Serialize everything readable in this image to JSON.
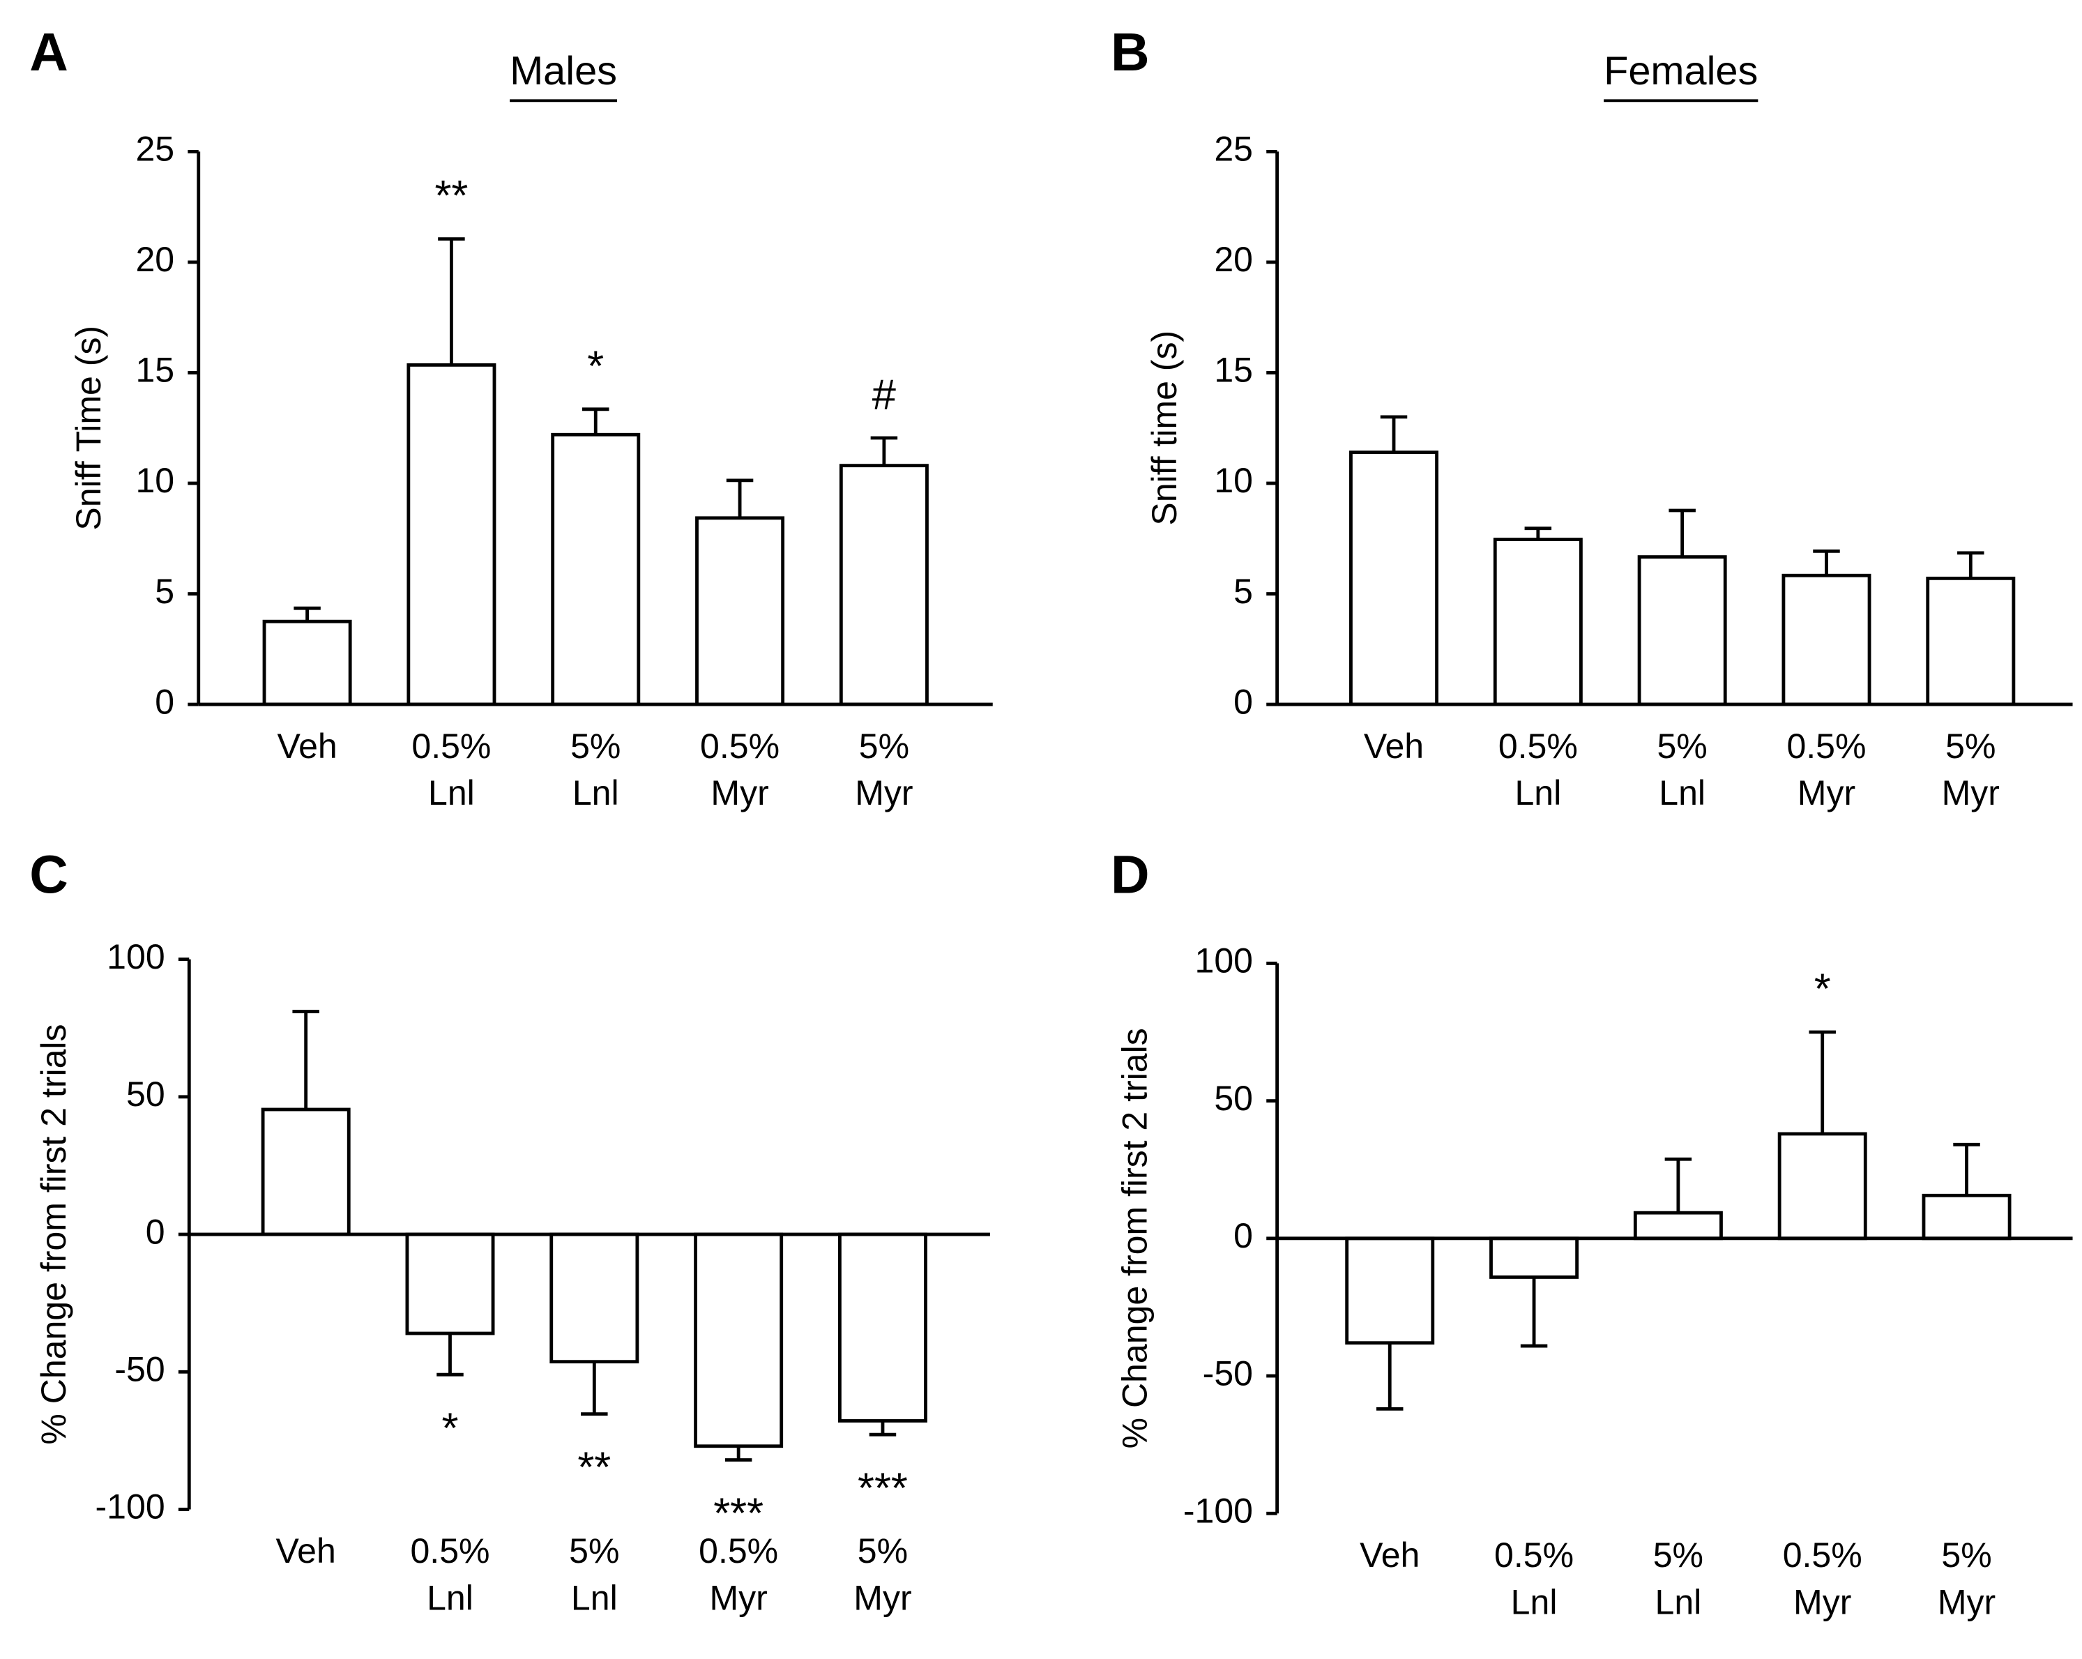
{
  "chart_data": [
    {
      "type": "bar",
      "panel": "A",
      "title": "Males",
      "ylabel": "Sniff Time (s)",
      "categories": [
        [
          "Veh"
        ],
        [
          "0.5%",
          "Lnl"
        ],
        [
          "5%",
          "Lnl"
        ],
        [
          "0.5%",
          "Myr"
        ],
        [
          "5%",
          "Myr"
        ]
      ],
      "values": [
        3.75,
        15.35,
        12.2,
        8.43,
        10.8
      ],
      "errors": [
        0.6,
        5.7,
        1.15,
        1.7,
        1.25
      ],
      "annotations": [
        null,
        "**",
        "*",
        null,
        "#"
      ],
      "color": "#ffffff",
      "ylim": [
        0,
        25
      ],
      "yticks": [
        0,
        5,
        10,
        15,
        20,
        25
      ]
    },
    {
      "type": "bar",
      "panel": "B",
      "title": "Females",
      "ylabel": "Sniff time (s)",
      "categories": [
        [
          "Veh"
        ],
        [
          "0.5%",
          "Lnl"
        ],
        [
          "5%",
          "Lnl"
        ],
        [
          "0.5%",
          "Myr"
        ],
        [
          "5%",
          "Myr"
        ]
      ],
      "values": [
        11.4,
        7.46,
        6.67,
        5.83,
        5.7
      ],
      "errors": [
        1.6,
        0.5,
        2.1,
        1.1,
        1.15
      ],
      "annotations": [
        null,
        null,
        null,
        null,
        null
      ],
      "color": "#ffffff",
      "ylim": [
        0,
        25
      ],
      "yticks": [
        0,
        5,
        10,
        15,
        20,
        25
      ]
    },
    {
      "type": "bar",
      "panel": "C",
      "ylabel": "% Change from first 2 trials",
      "categories": [
        [
          "Veh"
        ],
        [
          "0.5%",
          "Lnl"
        ],
        [
          "5%",
          "Lnl"
        ],
        [
          "0.5%",
          "Myr"
        ],
        [
          "5%",
          "Myr"
        ]
      ],
      "values": [
        45.4,
        -36,
        -46.3,
        -77,
        -67.8
      ],
      "errors": [
        35.6,
        15,
        19,
        5,
        5
      ],
      "annotations": [
        null,
        "*",
        "**",
        "***",
        "***"
      ],
      "color": "#ffffff",
      "ylim": [
        -100,
        100
      ],
      "yticks": [
        -100,
        -50,
        0,
        50,
        100
      ]
    },
    {
      "type": "bar",
      "panel": "D",
      "ylabel": "% Change from first 2 trials",
      "categories": [
        [
          "Veh"
        ],
        [
          "0.5%",
          "Lnl"
        ],
        [
          "5%",
          "Lnl"
        ],
        [
          "0.5%",
          "Myr"
        ],
        [
          "5%",
          "Myr"
        ]
      ],
      "values": [
        -38,
        -14.1,
        9.3,
        38,
        15.6
      ],
      "errors": [
        24,
        25,
        19.5,
        37,
        18.5
      ],
      "annotations": [
        null,
        null,
        null,
        "*",
        null
      ],
      "color": "#ffffff",
      "ylim": [
        -100,
        100
      ],
      "yticks": [
        -100,
        -50,
        0,
        50,
        100
      ]
    }
  ]
}
